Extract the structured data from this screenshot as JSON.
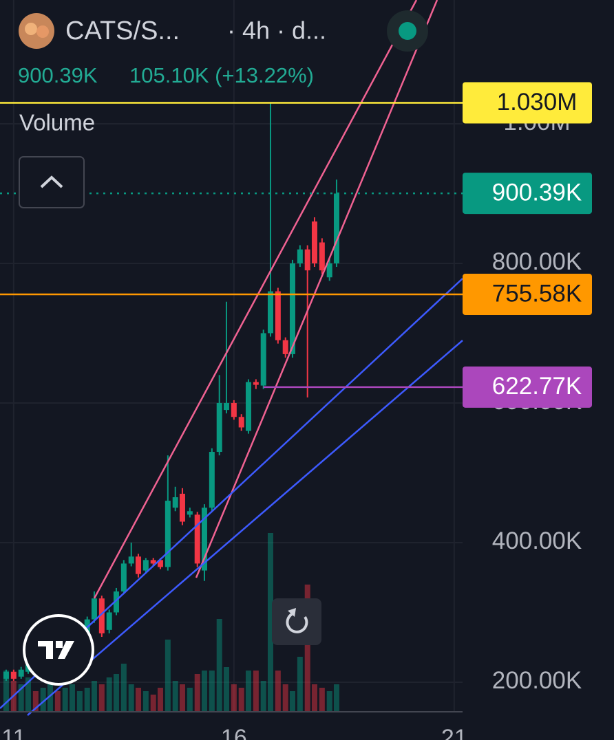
{
  "header": {
    "symbol": "CATS/S...",
    "interval": "· 4h · d...",
    "last": "900.39K",
    "change": "105.10K (+13.22%)"
  },
  "chart_data": {
    "type": "candlestick",
    "indicator": "Volume",
    "x": [
      10.83,
      11,
      11.17,
      11.33,
      11.5,
      11.67,
      11.83,
      12,
      12.17,
      12.33,
      12.5,
      12.67,
      12.83,
      13,
      13.17,
      13.33,
      13.5,
      13.67,
      13.83,
      14,
      14.17,
      14.33,
      14.5,
      14.67,
      14.83,
      15,
      15.17,
      15.33,
      15.5,
      15.67,
      15.83,
      16,
      16.17,
      16.33,
      16.5,
      16.67,
      16.83,
      17,
      17.17,
      17.33,
      17.5,
      17.67,
      17.83,
      18,
      18.17,
      18.33
    ],
    "open": [
      205000,
      215000,
      208000,
      215000,
      225000,
      218000,
      228000,
      238000,
      230000,
      245000,
      255000,
      270000,
      290000,
      320000,
      275000,
      300000,
      330000,
      370000,
      380000,
      360000,
      375000,
      375000,
      365000,
      450000,
      470000,
      440000,
      440000,
      360000,
      450000,
      530000,
      590000,
      600000,
      580000,
      560000,
      630000,
      625000,
      700000,
      760000,
      690000,
      670000,
      800000,
      820000,
      860000,
      830000,
      780000,
      800000
    ],
    "high": [
      218000,
      218000,
      222000,
      228000,
      228000,
      232000,
      242000,
      240000,
      248000,
      258000,
      274000,
      294000,
      330000,
      324000,
      304000,
      335000,
      375000,
      400000,
      384000,
      378000,
      378000,
      378000,
      525000,
      480000,
      478000,
      450000,
      444000,
      455000,
      535000,
      640000,
      745000,
      604000,
      584000,
      634000,
      634000,
      705000,
      1030000,
      765000,
      694000,
      805000,
      826000,
      826000,
      866000,
      836000,
      806000,
      920000
    ],
    "low": [
      202000,
      202000,
      205000,
      212000,
      215000,
      215000,
      225000,
      227000,
      228000,
      242000,
      252000,
      267000,
      285000,
      265000,
      270000,
      296000,
      326000,
      366000,
      350000,
      356000,
      366000,
      362000,
      360000,
      445000,
      425000,
      436000,
      365000,
      345000,
      445000,
      525000,
      585000,
      576000,
      560000,
      556000,
      620000,
      620000,
      695000,
      685000,
      665000,
      665000,
      795000,
      608000,
      795000,
      785000,
      775000,
      795000
    ],
    "close": [
      215000,
      205000,
      218000,
      225000,
      218000,
      228000,
      238000,
      230000,
      245000,
      255000,
      270000,
      290000,
      320000,
      270000,
      300000,
      330000,
      370000,
      380000,
      355000,
      375000,
      370000,
      365000,
      460000,
      465000,
      430000,
      445000,
      370000,
      450000,
      530000,
      600000,
      600000,
      580000,
      565000,
      630000,
      626000,
      700000,
      760000,
      690000,
      670000,
      800000,
      820000,
      790000,
      800000,
      790000,
      800000,
      900000
    ],
    "volume": [
      60,
      45,
      40,
      50,
      30,
      35,
      40,
      30,
      35,
      40,
      30,
      35,
      45,
      40,
      50,
      55,
      70,
      40,
      35,
      30,
      25,
      35,
      105,
      45,
      40,
      35,
      55,
      60,
      60,
      135,
      65,
      40,
      35,
      60,
      60,
      45,
      260,
      60,
      40,
      30,
      80,
      185,
      40,
      35,
      30,
      40
    ],
    "up_color": "#089981",
    "down_color": "#f23645",
    "xlim": [
      10.69,
      21.19
    ],
    "xticks": [
      11,
      16,
      21
    ],
    "ylim": [
      157600,
      1177300
    ],
    "yticks": [
      {
        "value": 200000,
        "label": "200.00K"
      },
      {
        "value": 400000,
        "label": "400.00K"
      },
      {
        "value": 600000,
        "label": "600.00K"
      },
      {
        "value": 800000,
        "label": "800.00K"
      },
      {
        "value": 1000000,
        "label": "1.00M"
      }
    ],
    "grid": true,
    "price_labels": [
      {
        "value": 1030000,
        "label": "1.030M",
        "color": "#ffeb3b",
        "text_color": "#131722"
      },
      {
        "value": 900390,
        "label": "900.39K",
        "color": "#089981",
        "text_color": "#ffffff"
      },
      {
        "value": 755580,
        "label": "755.58K",
        "color": "#ff9800",
        "text_color": "#131722"
      },
      {
        "value": 622770,
        "label": "622.77K",
        "color": "#ab47bc",
        "text_color": "#ffffff"
      }
    ]
  }
}
